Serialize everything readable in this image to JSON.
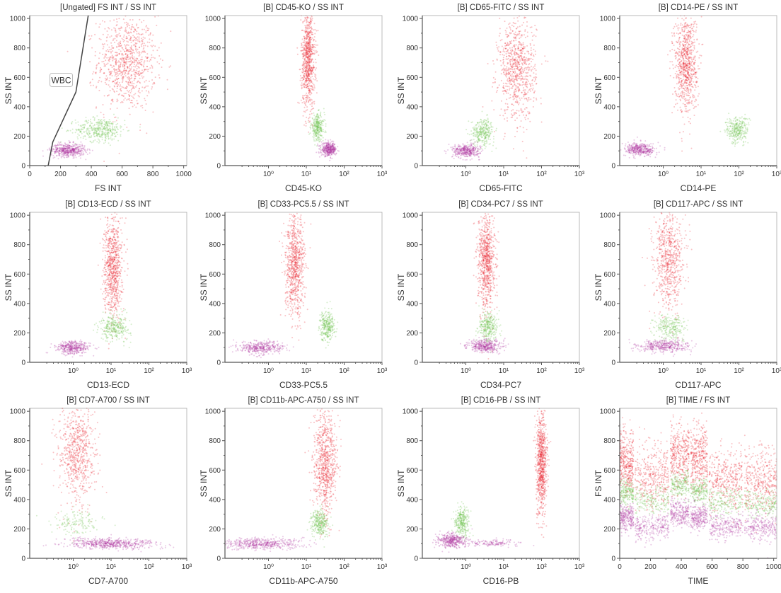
{
  "colors": {
    "granulocytes": "#e8202a",
    "monocytes": "#6cc24a",
    "lymphocytes": "#b03aa0",
    "axis": "#555555",
    "gate": "#444444"
  },
  "chart_data": [
    {
      "type": "scatter",
      "title": "[Ungated] FS INT / SS INT",
      "xlabel": "FS INT",
      "ylabel": "SS INT",
      "xscale": "linear",
      "xlim": [
        0,
        1020
      ],
      "ylim": [
        0,
        1020
      ],
      "xticks": [
        0,
        200,
        400,
        600,
        800,
        1000
      ],
      "xtick_labels": [
        "0",
        "200",
        "400",
        "600",
        "800",
        "1000"
      ],
      "gate": {
        "label": "WBC",
        "vertices": [
          [
            120,
            0
          ],
          [
            150,
            160
          ],
          [
            300,
            500
          ],
          [
            380,
            1020
          ]
        ],
        "label_at": [
          200,
          580
        ]
      },
      "clusters": [
        {
          "pop": "granulocytes",
          "x": 630,
          "y": 700,
          "sx": 95,
          "sy": 160,
          "n": 900
        },
        {
          "pop": "monocytes",
          "x": 460,
          "y": 245,
          "sx": 80,
          "sy": 40,
          "n": 400
        },
        {
          "pop": "lymphocytes",
          "x": 250,
          "y": 105,
          "sx": 55,
          "sy": 22,
          "n": 500
        }
      ]
    },
    {
      "type": "scatter",
      "title": "[B] CD45-KO / SS INT",
      "xlabel": "CD45-KO",
      "ylabel": "SS INT",
      "xscale": "log",
      "xlim": [
        -1.15,
        3
      ],
      "ylim": [
        0,
        1020
      ],
      "clusters": [
        {
          "pop": "granulocytes",
          "x": 1.05,
          "y": 720,
          "sx": 0.09,
          "sy": 170,
          "n": 800
        },
        {
          "pop": "monocytes",
          "x": 1.3,
          "y": 260,
          "sx": 0.09,
          "sy": 45,
          "n": 300
        },
        {
          "pop": "lymphocytes",
          "x": 1.6,
          "y": 110,
          "sx": 0.1,
          "sy": 22,
          "n": 400
        }
      ]
    },
    {
      "type": "scatter",
      "title": "[B] CD65-FITC / SS INT",
      "xlabel": "CD65-FITC",
      "ylabel": "SS INT",
      "xscale": "log",
      "xlim": [
        -1.15,
        3
      ],
      "ylim": [
        0,
        1020
      ],
      "clusters": [
        {
          "pop": "granulocytes",
          "x": 1.35,
          "y": 650,
          "sx": 0.25,
          "sy": 170,
          "n": 800
        },
        {
          "pop": "monocytes",
          "x": 0.45,
          "y": 230,
          "sx": 0.15,
          "sy": 45,
          "n": 300
        },
        {
          "pop": "lymphocytes",
          "x": 0.0,
          "y": 100,
          "sx": 0.18,
          "sy": 22,
          "n": 400
        }
      ]
    },
    {
      "type": "scatter",
      "title": "[B] CD14-PE / SS INT",
      "xlabel": "CD14-PE",
      "ylabel": "SS INT",
      "xscale": "log",
      "xlim": [
        -1.15,
        3
      ],
      "ylim": [
        0,
        1020
      ],
      "clusters": [
        {
          "pop": "granulocytes",
          "x": 0.6,
          "y": 700,
          "sx": 0.15,
          "sy": 170,
          "n": 800
        },
        {
          "pop": "monocytes",
          "x": 1.95,
          "y": 240,
          "sx": 0.15,
          "sy": 45,
          "n": 300
        },
        {
          "pop": "lymphocytes",
          "x": -0.6,
          "y": 110,
          "sx": 0.2,
          "sy": 22,
          "n": 400
        }
      ]
    },
    {
      "type": "scatter",
      "title": "[B] CD13-ECD / SS INT",
      "xlabel": "CD13-ECD",
      "ylabel": "SS INT",
      "xscale": "log",
      "xlim": [
        -1.15,
        3
      ],
      "ylim": [
        0,
        1020
      ],
      "clusters": [
        {
          "pop": "granulocytes",
          "x": 1.05,
          "y": 650,
          "sx": 0.12,
          "sy": 170,
          "n": 800
        },
        {
          "pop": "monocytes",
          "x": 1.1,
          "y": 240,
          "sx": 0.2,
          "sy": 45,
          "n": 300
        },
        {
          "pop": "lymphocytes",
          "x": 0.0,
          "y": 100,
          "sx": 0.22,
          "sy": 22,
          "n": 400
        }
      ]
    },
    {
      "type": "scatter",
      "title": "[B] CD33-PC5.5 / SS INT",
      "xlabel": "CD33-PC5.5",
      "ylabel": "SS INT",
      "xscale": "log",
      "xlim": [
        -1.15,
        3
      ],
      "ylim": [
        0,
        1020
      ],
      "clusters": [
        {
          "pop": "granulocytes",
          "x": 0.7,
          "y": 650,
          "sx": 0.13,
          "sy": 170,
          "n": 800
        },
        {
          "pop": "monocytes",
          "x": 1.55,
          "y": 250,
          "sx": 0.1,
          "sy": 50,
          "n": 300
        },
        {
          "pop": "lymphocytes",
          "x": -0.2,
          "y": 100,
          "sx": 0.3,
          "sy": 22,
          "n": 400
        }
      ]
    },
    {
      "type": "scatter",
      "title": "[B] CD34-PC7 / SS INT",
      "xlabel": "CD34-PC7",
      "ylabel": "SS INT",
      "xscale": "log",
      "xlim": [
        -1.15,
        3
      ],
      "ylim": [
        0,
        1020
      ],
      "clusters": [
        {
          "pop": "granulocytes",
          "x": 0.55,
          "y": 700,
          "sx": 0.11,
          "sy": 170,
          "n": 800
        },
        {
          "pop": "monocytes",
          "x": 0.6,
          "y": 240,
          "sx": 0.13,
          "sy": 50,
          "n": 300
        },
        {
          "pop": "lymphocytes",
          "x": 0.5,
          "y": 110,
          "sx": 0.22,
          "sy": 22,
          "n": 400
        }
      ]
    },
    {
      "type": "scatter",
      "title": "[B] CD117-APC / SS INT",
      "xlabel": "CD117-APC",
      "ylabel": "SS INT",
      "xscale": "log",
      "xlim": [
        -1.15,
        3
      ],
      "ylim": [
        0,
        1020
      ],
      "clusters": [
        {
          "pop": "granulocytes",
          "x": 0.15,
          "y": 700,
          "sx": 0.2,
          "sy": 170,
          "n": 700
        },
        {
          "pop": "monocytes",
          "x": 0.2,
          "y": 240,
          "sx": 0.2,
          "sy": 45,
          "n": 250
        },
        {
          "pop": "lymphocytes",
          "x": 0.0,
          "y": 110,
          "sx": 0.35,
          "sy": 22,
          "n": 400
        }
      ]
    },
    {
      "type": "scatter",
      "title": "[B] CD7-A700 / SS INT",
      "xlabel": "CD7-A700",
      "ylabel": "SS INT",
      "xscale": "log",
      "xlim": [
        -1.15,
        3
      ],
      "ylim": [
        0,
        1020
      ],
      "clusters": [
        {
          "pop": "granulocytes",
          "x": 0.1,
          "y": 700,
          "sx": 0.25,
          "sy": 170,
          "n": 700
        },
        {
          "pop": "monocytes",
          "x": 0.1,
          "y": 240,
          "sx": 0.3,
          "sy": 50,
          "n": 150
        },
        {
          "pop": "lymphocytes",
          "x": 1.0,
          "y": 100,
          "sx": 0.6,
          "sy": 18,
          "n": 600
        }
      ]
    },
    {
      "type": "scatter",
      "title": "[B] CD11b-APC-A750 / SS INT",
      "xlabel": "CD11b-APC-A750",
      "ylabel": "SS INT",
      "xscale": "log",
      "xlim": [
        -1.15,
        3
      ],
      "ylim": [
        0,
        1020
      ],
      "clusters": [
        {
          "pop": "granulocytes",
          "x": 1.5,
          "y": 650,
          "sx": 0.15,
          "sy": 170,
          "n": 800
        },
        {
          "pop": "monocytes",
          "x": 1.35,
          "y": 240,
          "sx": 0.12,
          "sy": 45,
          "n": 300
        },
        {
          "pop": "lymphocytes",
          "x": -0.2,
          "y": 100,
          "sx": 0.55,
          "sy": 20,
          "n": 500
        }
      ]
    },
    {
      "type": "scatter",
      "title": "[B] CD16-PB / SS INT",
      "xlabel": "CD16-PB",
      "ylabel": "SS INT",
      "xscale": "log",
      "xlim": [
        -1.15,
        3
      ],
      "ylim": [
        0,
        1020
      ],
      "clusters": [
        {
          "pop": "granulocytes",
          "x": 2.0,
          "y": 650,
          "sx": 0.07,
          "sy": 170,
          "n": 800
        },
        {
          "pop": "monocytes",
          "x": -0.1,
          "y": 250,
          "sx": 0.1,
          "sy": 50,
          "n": 300
        },
        {
          "pop": "lymphocytes",
          "x": -0.4,
          "y": 120,
          "sx": 0.18,
          "sy": 25,
          "n": 400
        },
        {
          "pop": "lymphocytes",
          "x": 0.7,
          "y": 105,
          "sx": 0.4,
          "sy": 12,
          "n": 150
        }
      ]
    },
    {
      "type": "scatter",
      "title": "[B] TIME / FS INT",
      "xlabel": "TIME",
      "ylabel": "FS INT",
      "xscale": "linear",
      "xlim": [
        0,
        1020
      ],
      "ylim": [
        0,
        1020
      ],
      "xticks": [
        0,
        200,
        400,
        600,
        800,
        1000
      ],
      "xtick_labels": [
        "0",
        "200",
        "400",
        "600",
        "800",
        "1000"
      ],
      "segments": [
        {
          "t": [
            0,
            90
          ],
          "granulocytes": 650,
          "monocytes": 440,
          "lymphocytes": 280
        },
        {
          "t": [
            100,
            320
          ],
          "granulocytes": 560,
          "monocytes": 390,
          "lymphocytes": 210
        },
        {
          "t": [
            330,
            450
          ],
          "granulocytes": 700,
          "monocytes": 500,
          "lymphocytes": 300
        },
        {
          "t": [
            460,
            570
          ],
          "granulocytes": 680,
          "monocytes": 460,
          "lymphocytes": 280
        },
        {
          "t": [
            580,
            800
          ],
          "granulocytes": 540,
          "monocytes": 380,
          "lymphocytes": 215
        },
        {
          "t": [
            810,
            1020
          ],
          "granulocytes": 530,
          "monocytes": 370,
          "lymphocytes": 210
        }
      ]
    }
  ],
  "axes": {
    "y_ticks": [
      0,
      200,
      400,
      600,
      800,
      1000
    ],
    "y_tick_labels": [
      "0",
      "200",
      "400",
      "600",
      "800",
      "1000"
    ],
    "log_ticks": [
      0,
      1,
      2,
      3
    ],
    "log_tick_labels": [
      "10⁰",
      "10¹",
      "10²",
      "10³"
    ]
  }
}
